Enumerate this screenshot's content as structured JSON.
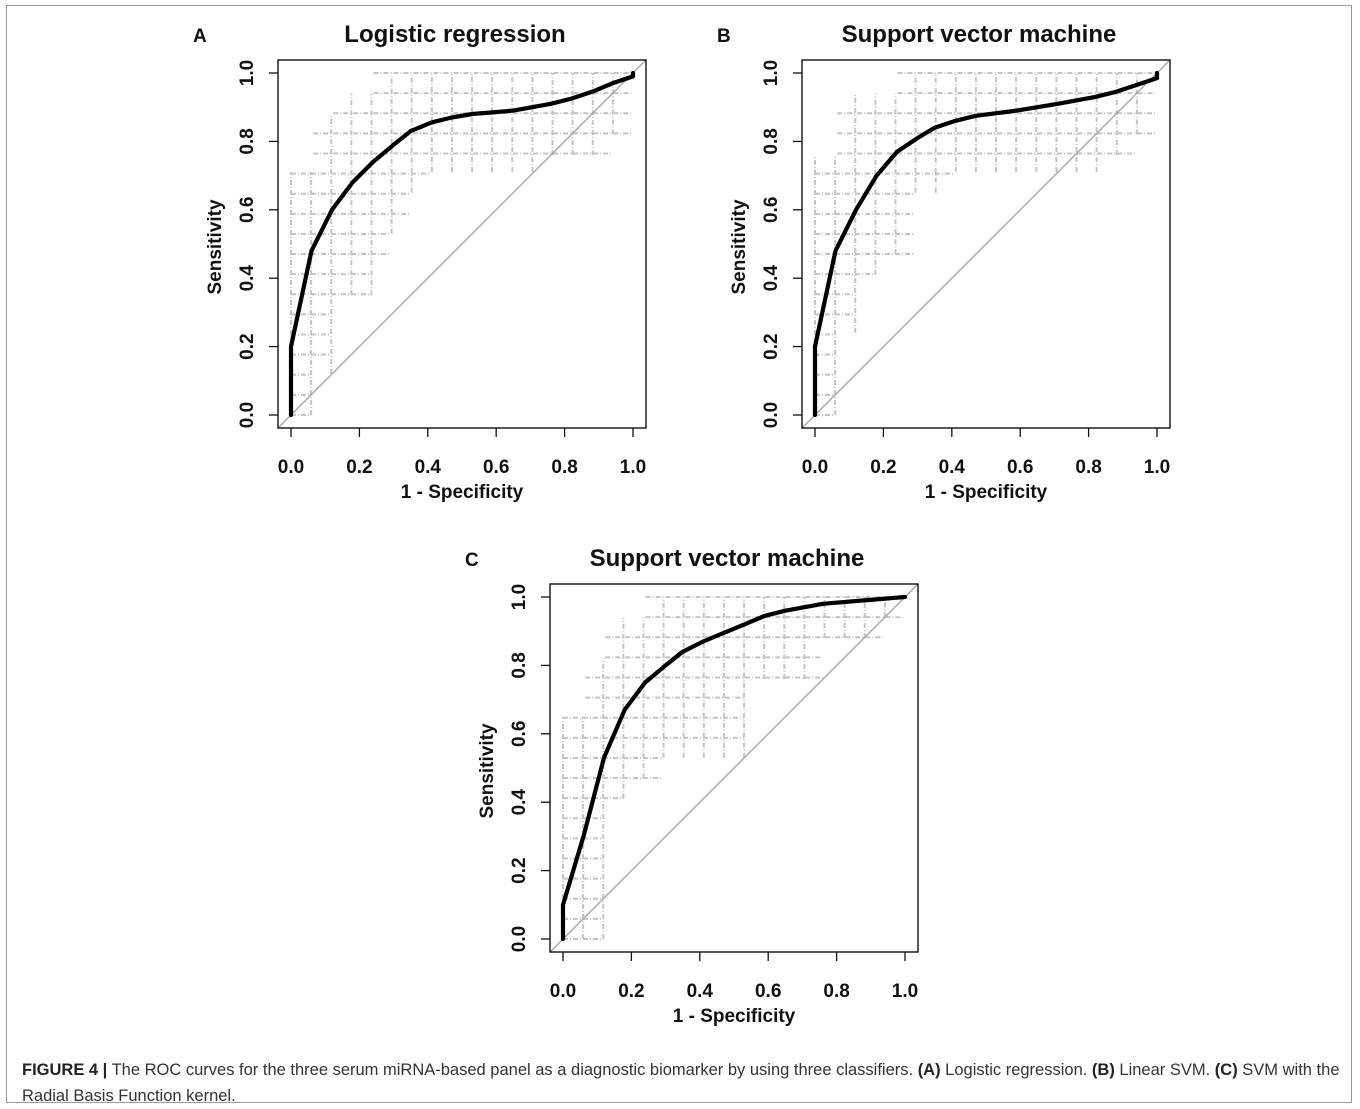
{
  "figure": {
    "caption_lead": "FIGURE 4 |",
    "caption_text": " The ROC curves for the three serum miRNA-based panel as a diagnostic biomarker by using three classifiers. ",
    "caption_a": "(A)",
    "caption_a_text": " Logistic regression. ",
    "caption_b": "(B)",
    "caption_b_text": " Linear SVM. ",
    "caption_c": "(C)",
    "caption_c_text": " SVM with the Radial Basis Function kernel."
  },
  "chart_data": [
    {
      "type": "line",
      "panel_label": "A",
      "title": "Logistic regression",
      "xlabel": "1 - Specificity",
      "ylabel": "Sensitivity",
      "xlim": [
        0,
        1
      ],
      "ylim": [
        0,
        1
      ],
      "xticks": [
        "0.0",
        "0.2",
        "0.4",
        "0.6",
        "0.8",
        "1.0"
      ],
      "yticks": [
        "0.0",
        "0.2",
        "0.4",
        "0.6",
        "0.8",
        "1.0"
      ],
      "curve": {
        "x": [
          0.0,
          0.0,
          0.06,
          0.12,
          0.18,
          0.24,
          0.3,
          0.35,
          0.41,
          0.47,
          0.53,
          0.65,
          0.76,
          0.82,
          0.88,
          0.94,
          1.0,
          1.0
        ],
        "y": [
          0.0,
          0.2,
          0.48,
          0.6,
          0.68,
          0.74,
          0.79,
          0.83,
          0.855,
          0.87,
          0.88,
          0.89,
          0.91,
          0.925,
          0.945,
          0.97,
          0.99,
          1.0
        ]
      },
      "band_upper": {
        "x": [
          0.0,
          0.0,
          0.06,
          0.12,
          0.18,
          0.24,
          0.3,
          1.0
        ],
        "y": [
          0.0,
          0.71,
          0.88,
          0.94,
          0.94,
          1.0,
          1.0,
          1.0
        ]
      },
      "band_lower": {
        "x": [
          0.0,
          0.06,
          0.06,
          0.12,
          0.12,
          0.18,
          0.24,
          0.24,
          0.29,
          0.35,
          0.35,
          0.41,
          0.41,
          0.71,
          0.71,
          0.94,
          1.0
        ],
        "y": [
          0.0,
          0.0,
          0.12,
          0.24,
          0.35,
          0.35,
          0.41,
          0.47,
          0.53,
          0.53,
          0.65,
          0.65,
          0.71,
          0.71,
          0.76,
          0.82,
          1.0
        ]
      }
    },
    {
      "type": "line",
      "panel_label": "B",
      "title": "Support vector machine",
      "xlabel": "1 - Specificity",
      "ylabel": "Sensitivity",
      "xlim": [
        0,
        1
      ],
      "ylim": [
        0,
        1
      ],
      "xticks": [
        "0.0",
        "0.2",
        "0.4",
        "0.6",
        "0.8",
        "1.0"
      ],
      "yticks": [
        "0.0",
        "0.2",
        "0.4",
        "0.6",
        "0.8",
        "1.0"
      ],
      "curve": {
        "x": [
          0.0,
          0.0,
          0.06,
          0.12,
          0.18,
          0.24,
          0.3,
          0.35,
          0.41,
          0.47,
          0.59,
          0.71,
          0.82,
          0.88,
          0.94,
          1.0,
          1.0
        ],
        "y": [
          0.0,
          0.2,
          0.48,
          0.6,
          0.7,
          0.77,
          0.81,
          0.84,
          0.86,
          0.875,
          0.89,
          0.91,
          0.93,
          0.945,
          0.965,
          0.985,
          1.0
        ]
      },
      "band_upper": {
        "x": [
          0.0,
          0.0,
          0.06,
          0.06,
          0.18,
          0.24,
          0.24,
          1.0
        ],
        "y": [
          0.0,
          0.76,
          0.76,
          0.94,
          0.94,
          0.94,
          1.0,
          1.0
        ]
      },
      "band_lower": {
        "x": [
          0.0,
          0.06,
          0.06,
          0.12,
          0.12,
          0.18,
          0.18,
          0.29,
          0.29,
          0.41,
          0.41,
          0.88,
          0.88,
          0.94,
          1.0
        ],
        "y": [
          0.0,
          0.0,
          0.24,
          0.24,
          0.41,
          0.41,
          0.47,
          0.53,
          0.65,
          0.65,
          0.71,
          0.71,
          0.76,
          0.82,
          1.0
        ]
      }
    },
    {
      "type": "line",
      "panel_label": "C",
      "title": "Support vector machine",
      "xlabel": "1 - Specificity",
      "ylabel": "Sensitivity",
      "xlim": [
        0,
        1
      ],
      "ylim": [
        0,
        1
      ],
      "xticks": [
        "0.0",
        "0.2",
        "0.4",
        "0.6",
        "0.8",
        "1.0"
      ],
      "yticks": [
        "0.0",
        "0.2",
        "0.4",
        "0.6",
        "0.8",
        "1.0"
      ],
      "curve": {
        "x": [
          0.0,
          0.0,
          0.06,
          0.12,
          0.18,
          0.24,
          0.3,
          0.35,
          0.41,
          0.47,
          0.53,
          0.59,
          0.65,
          0.76,
          0.88,
          1.0
        ],
        "y": [
          0.0,
          0.1,
          0.3,
          0.53,
          0.67,
          0.75,
          0.8,
          0.84,
          0.87,
          0.895,
          0.92,
          0.945,
          0.96,
          0.98,
          0.99,
          1.0
        ]
      },
      "band_upper": {
        "x": [
          0.0,
          0.0,
          0.06,
          0.06,
          0.12,
          0.12,
          0.24,
          0.24,
          1.0
        ],
        "y": [
          0.0,
          0.65,
          0.65,
          0.82,
          0.82,
          0.94,
          0.94,
          1.0,
          1.0
        ]
      },
      "band_lower": {
        "x": [
          0.0,
          0.12,
          0.12,
          0.18,
          0.18,
          0.29,
          0.29,
          0.53,
          0.53,
          0.76,
          0.76,
          0.94,
          1.0
        ],
        "y": [
          0.0,
          0.0,
          0.41,
          0.41,
          0.47,
          0.53,
          0.53,
          0.59,
          0.76,
          0.76,
          0.88,
          0.94,
          1.0
        ]
      }
    }
  ]
}
